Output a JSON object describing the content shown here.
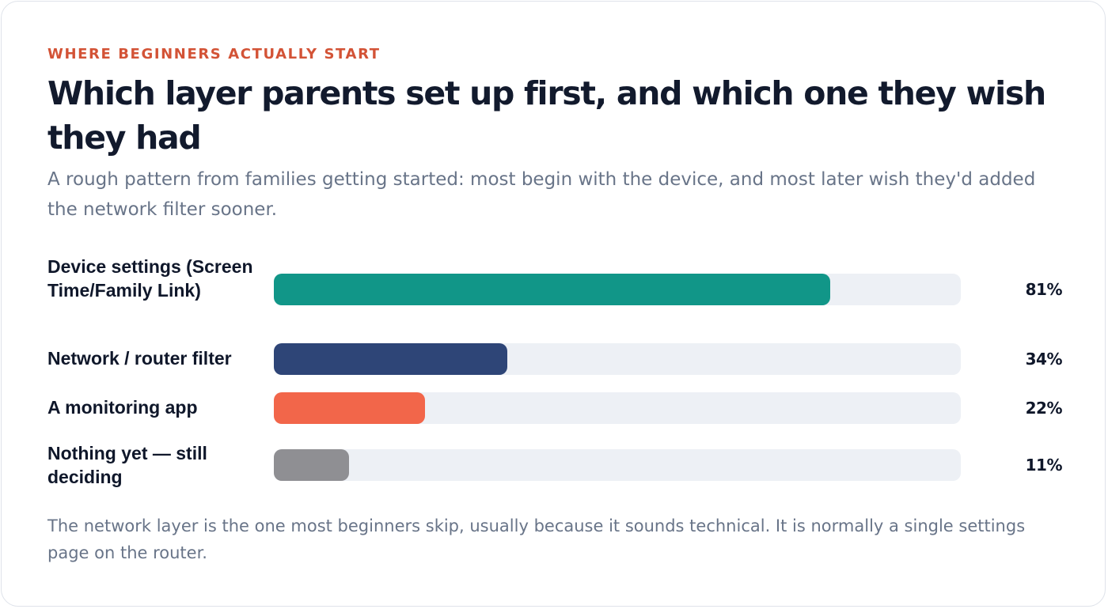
{
  "eyebrow": "WHERE BEGINNERS ACTUALLY START",
  "title": "Which layer parents set up first, and which one they wish they had",
  "subtitle": "A rough pattern from families getting started: most begin with the device, and most later wish they'd added the network filter sooner.",
  "footnote": "The network layer is the one most beginners skip, usually because it sounds technical. It is normally a single settings page on the router.",
  "chart_data": {
    "type": "bar",
    "orientation": "horizontal",
    "categories": [
      "Device settings (Screen Time/Family Link)",
      "Network / router filter",
      "A monitoring app",
      "Nothing yet — still deciding"
    ],
    "values": [
      81,
      34,
      22,
      11
    ],
    "value_labels": [
      "81%",
      "34%",
      "22%",
      "11%"
    ],
    "colors": [
      "#119688",
      "#2e4577",
      "#f2664a",
      "#8f8f93"
    ],
    "xlim": [
      0,
      100
    ],
    "grid": false,
    "legend": "none"
  }
}
